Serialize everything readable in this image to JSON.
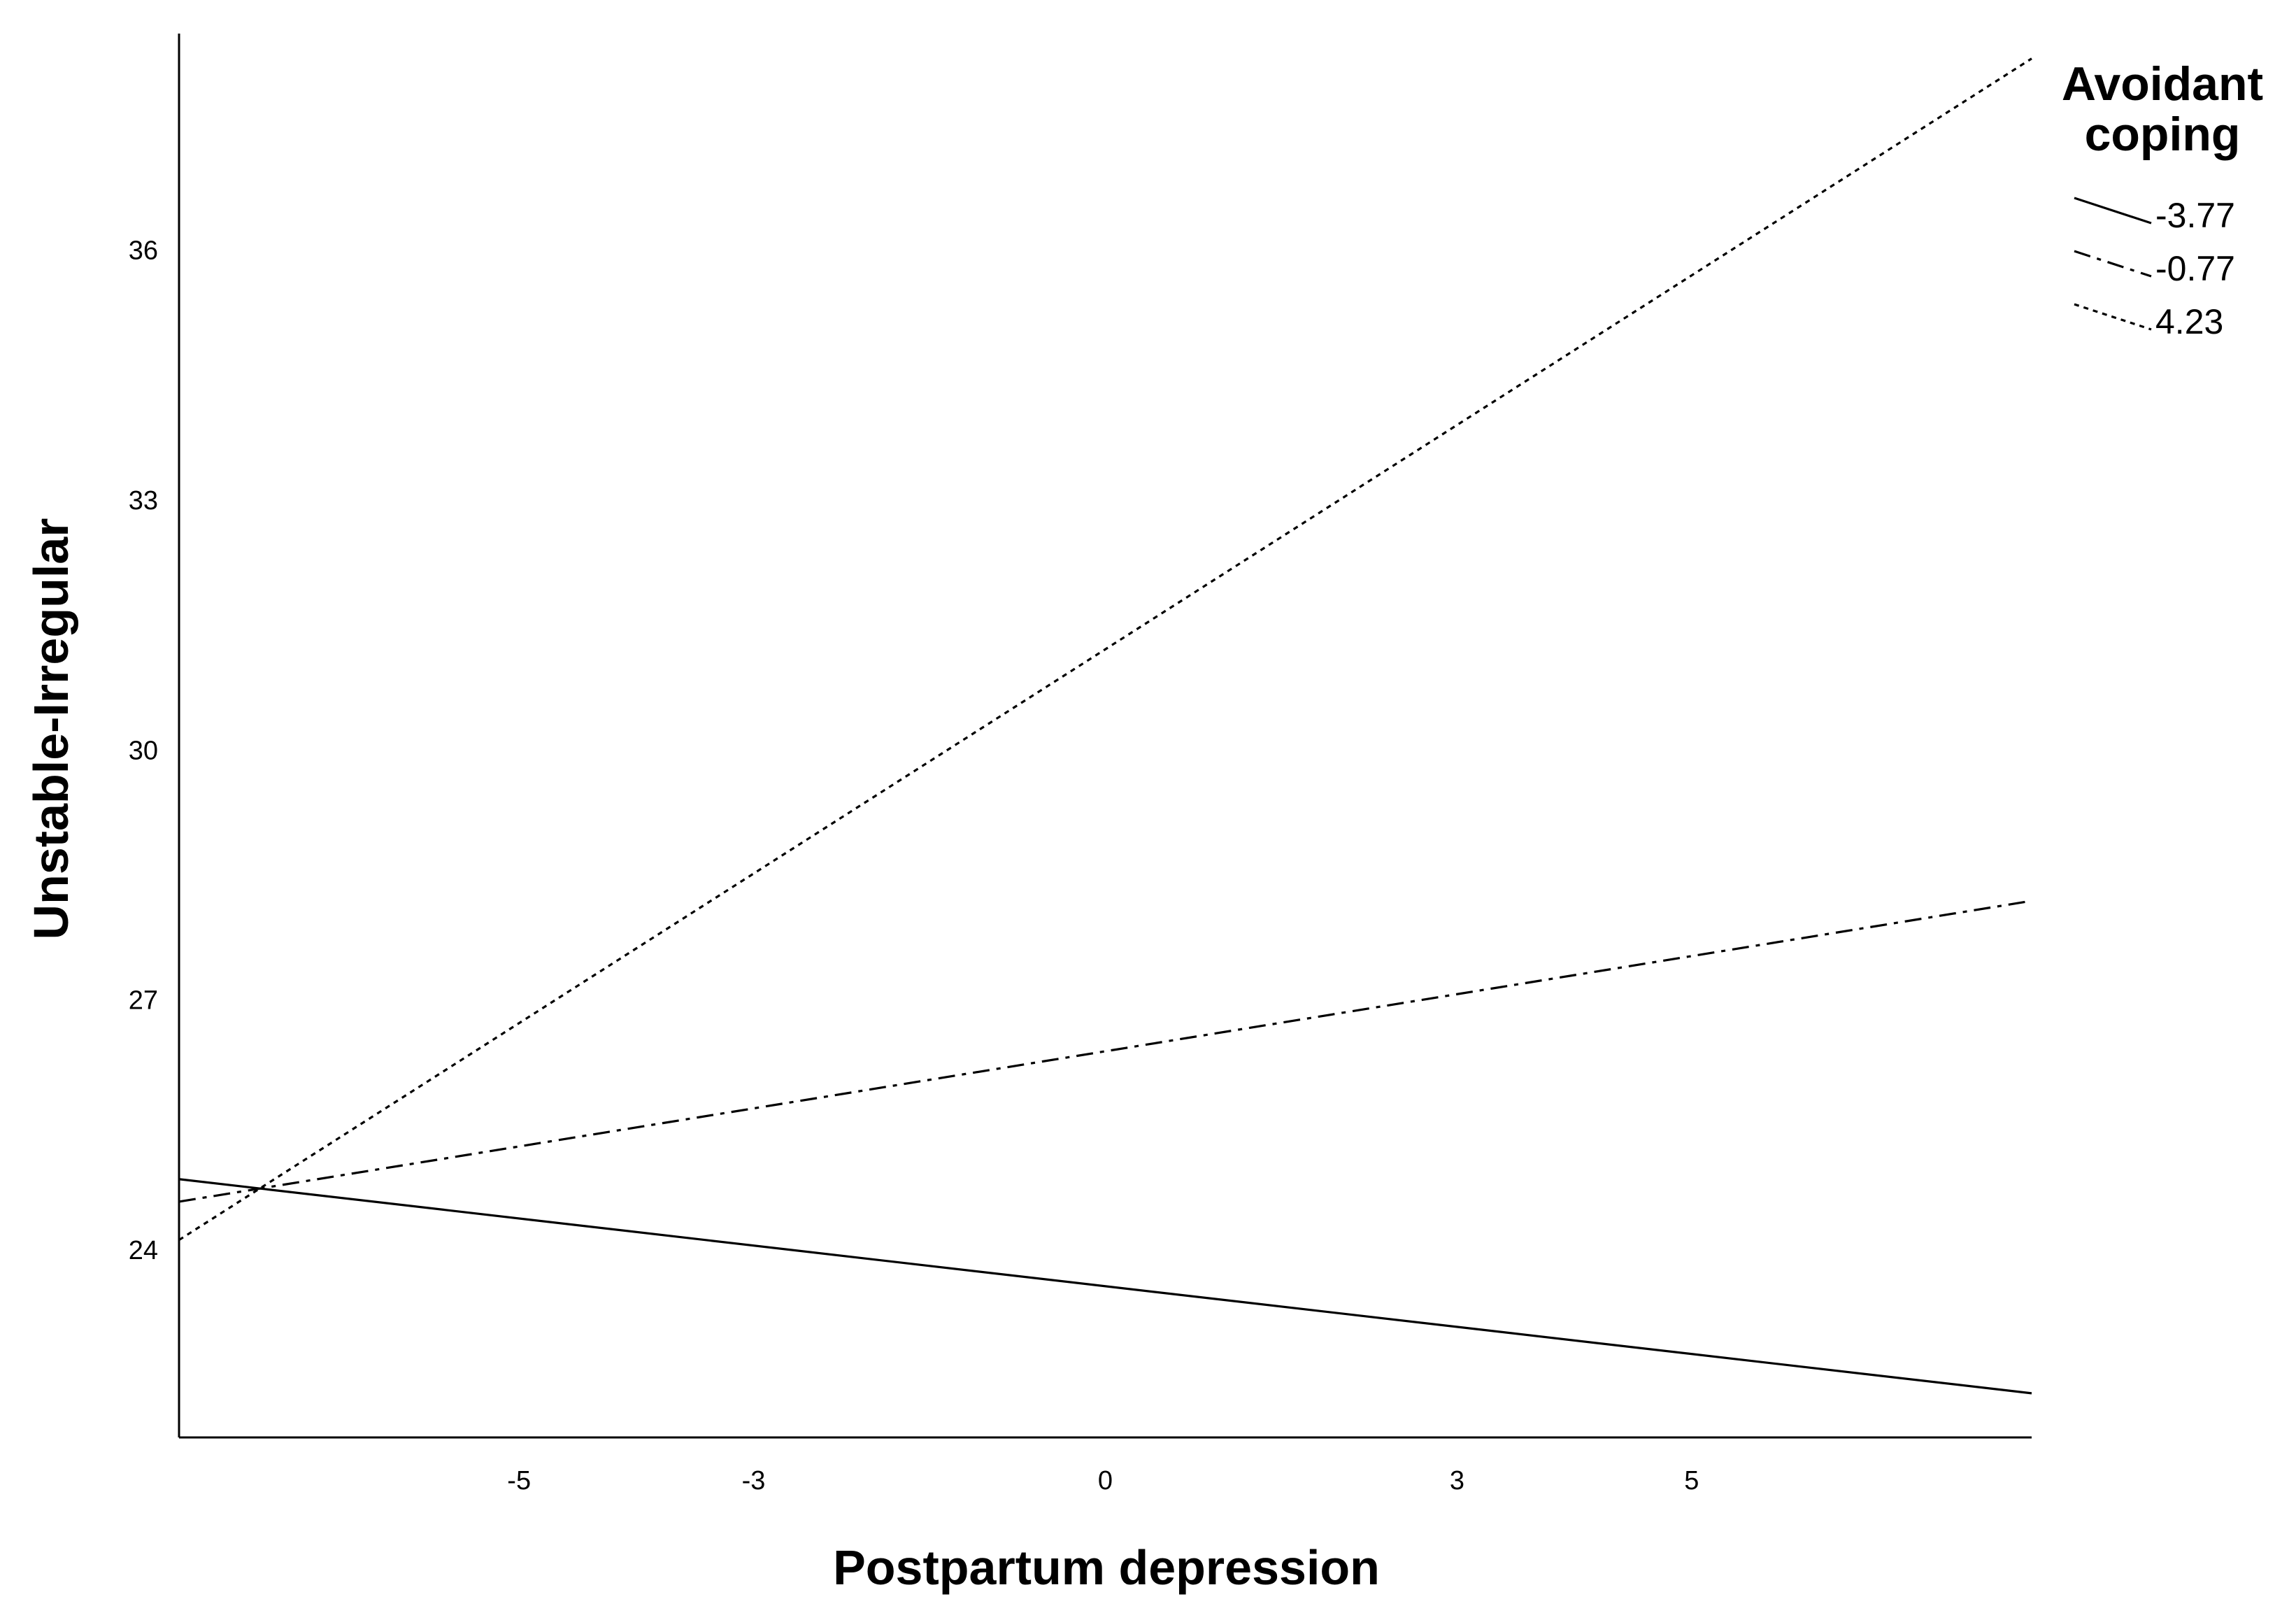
{
  "chart_data": {
    "type": "line",
    "xlabel": "Postpartum depression",
    "ylabel": "Unstable-Irregular",
    "xlim": [
      -7.9,
      7.9
    ],
    "ylim": [
      21.75,
      38.6
    ],
    "x_ticks": [
      -5,
      -3,
      0,
      3,
      5
    ],
    "y_ticks": [
      24,
      27,
      30,
      33,
      36
    ],
    "grid": false,
    "legend": {
      "title_lines": [
        "Avoidant",
        "coping"
      ],
      "placement": "top-right"
    },
    "series": [
      {
        "name": "-3.77",
        "style": "solid",
        "x": [
          -7.9,
          7.9
        ],
        "y": [
          24.85,
          22.28
        ]
      },
      {
        "name": "-0.77",
        "style": "dashed",
        "x": [
          -7.9,
          7.9
        ],
        "y": [
          24.58,
          28.19
        ]
      },
      {
        "name": "4.23",
        "style": "dotted",
        "x": [
          -7.9,
          7.9
        ],
        "y": [
          24.12,
          38.3
        ]
      }
    ]
  }
}
